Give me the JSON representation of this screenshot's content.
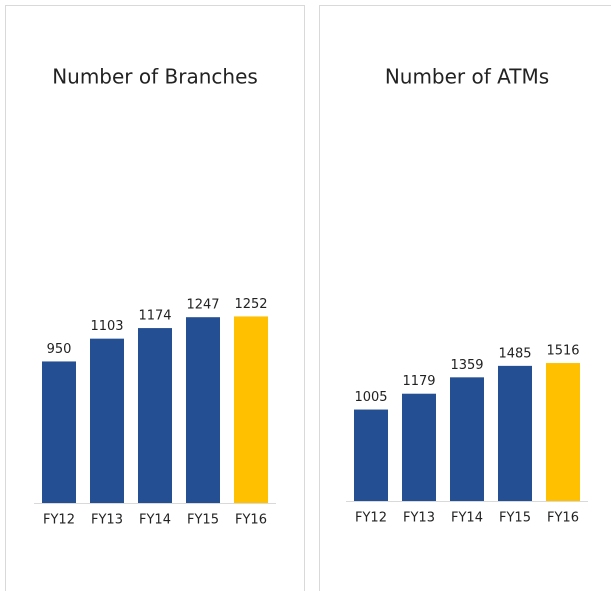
{
  "chart_data": [
    {
      "type": "bar",
      "title": "Number of Branches",
      "categories": [
        "FY12",
        "FY13",
        "FY14",
        "FY15",
        "FY16"
      ],
      "values": [
        950,
        1103,
        1174,
        1247,
        1252
      ],
      "colors": [
        "#244f93",
        "#244f93",
        "#244f93",
        "#244f93",
        "#ffc000"
      ],
      "ylim": [
        0,
        3000
      ]
    },
    {
      "type": "bar",
      "title": "Number of ATMs",
      "categories": [
        "FY12",
        "FY13",
        "FY14",
        "FY15",
        "FY16"
      ],
      "values": [
        1005,
        1179,
        1359,
        1485,
        1516
      ],
      "colors": [
        "#244f93",
        "#244f93",
        "#244f93",
        "#244f93",
        "#ffc000"
      ],
      "ylim": [
        0,
        5000
      ]
    }
  ]
}
